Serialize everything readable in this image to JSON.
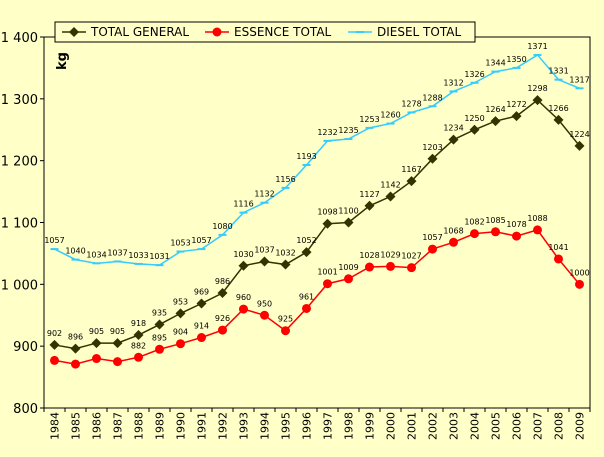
{
  "chart_data": {
    "type": "line",
    "ylabel": "kg",
    "xlabel": "",
    "title": "",
    "ylim": [
      800,
      1400
    ],
    "yticks": [
      800,
      900,
      1000,
      1100,
      1200,
      1300,
      1400
    ],
    "ytick_labels": [
      "800",
      "900",
      "1 000",
      "1 100",
      "1 200",
      "1 300",
      "1 400"
    ],
    "grid": false,
    "legend_position": "top",
    "x": [
      "1984",
      "1985",
      "1986",
      "1987",
      "1988",
      "1989",
      "1990",
      "1991",
      "1992",
      "1993",
      "1994",
      "1995",
      "1996",
      "1997",
      "1998",
      "1999",
      "2000",
      "2001",
      "2002",
      "2003",
      "2004",
      "2005",
      "2006",
      "2007",
      "2008",
      "2009"
    ],
    "series": [
      {
        "name": "TOTAL GENERAL",
        "color": "#333300",
        "marker": "diamond",
        "values": [
          902,
          896,
          905,
          905,
          918,
          935,
          953,
          969,
          986,
          1030,
          1037,
          1032,
          1052,
          1098,
          1100,
          1127,
          1142,
          1167,
          1203,
          1234,
          1250,
          1264,
          1272,
          1298,
          1266,
          1224
        ],
        "labels": [
          "902",
          "896",
          "905",
          "905",
          "918",
          "935",
          "953",
          "969",
          "986",
          "1030",
          "1037",
          "1032",
          "1052",
          "1098",
          "1100",
          "1127",
          "1142",
          "1167",
          "1203",
          "1234",
          "1250",
          "1264",
          "1272",
          "1298",
          "1266",
          "1224"
        ]
      },
      {
        "name": "ESSENCE TOTAL",
        "color": "#ff0000",
        "marker": "circle",
        "values": [
          877,
          871,
          880,
          875,
          882,
          895,
          904,
          914,
          926,
          960,
          950,
          925,
          961,
          1001,
          1009,
          1028,
          1029,
          1027,
          1057,
          1068,
          1082,
          1085,
          1078,
          1088,
          1041,
          1000
        ],
        "labels": [
          "",
          "",
          "",
          "",
          "882",
          "895",
          "904",
          "914",
          "926",
          "960",
          "950",
          "925",
          "961",
          "1001",
          "1009",
          "1028",
          "1029",
          "1027",
          "1057",
          "1068",
          "1082",
          "1085",
          "1078",
          "1088",
          "1041",
          "1000"
        ]
      },
      {
        "name": "DIESEL TOTAL",
        "color": "#33ccff",
        "marker": "dash",
        "values": [
          1057,
          1040,
          1034,
          1037,
          1033,
          1031,
          1053,
          1057,
          1080,
          1116,
          1132,
          1156,
          1193,
          1232,
          1235,
          1253,
          1260,
          1278,
          1288,
          1312,
          1326,
          1344,
          1350,
          1371,
          1331,
          1317
        ],
        "labels": [
          "1057",
          "1040",
          "1034",
          "1037",
          "1033",
          "1031",
          "1053",
          "1057",
          "1080",
          "1116",
          "1132",
          "1156",
          "1193",
          "1232",
          "1235",
          "1253",
          "1260",
          "1278",
          "1288",
          "1312",
          "1326",
          "1344",
          "1350",
          "1371",
          "1331",
          "1317"
        ]
      }
    ]
  }
}
